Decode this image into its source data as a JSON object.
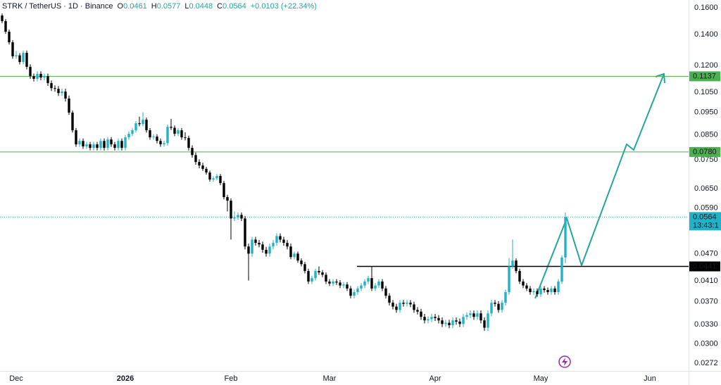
{
  "chart_data": {
    "type": "candlestick",
    "title": "STRK / TetherUS · 1D · Binance",
    "ohlc_letters": [
      "O",
      "H",
      "L",
      "C"
    ],
    "ohlc_values": [
      0.0461,
      0.0577,
      0.0448,
      0.0564
    ],
    "change": "+0.0103 (+22.34%)",
    "countdown": "13:43:1",
    "up_color": "#22b2c6",
    "down_color": "#000000",
    "log_scale": true,
    "grid": false,
    "ylim": [
      0.0262,
      0.1663
    ],
    "yticks": [
      {
        "value": 0.16,
        "label": "0.1600"
      },
      {
        "value": 0.14,
        "label": "0.1400"
      },
      {
        "value": 0.12,
        "label": "0.1200"
      },
      {
        "value": 0.105,
        "label": "0.1050"
      },
      {
        "value": 0.095,
        "label": "0.0950"
      },
      {
        "value": 0.085,
        "label": "0.0850"
      },
      {
        "value": 0.075,
        "label": "0.0750"
      },
      {
        "value": 0.065,
        "label": "0.0650"
      },
      {
        "value": 0.059,
        "label": "0.0590"
      },
      {
        "value": 0.047,
        "label": "0.0470"
      },
      {
        "value": 0.041,
        "label": "0.0410"
      },
      {
        "value": 0.037,
        "label": "0.0370"
      },
      {
        "value": 0.033,
        "label": "0.0330"
      },
      {
        "value": 0.03,
        "label": "0.0300"
      },
      0.0272
    ],
    "levels": [
      {
        "price": 0.1137,
        "color": "#4caf50",
        "full": true
      },
      {
        "price": 0.078,
        "label": "0.0780",
        "color": "#4caf50",
        "full": true
      },
      {
        "price": 0.0441,
        "color": "#000000",
        "full": false
      }
    ],
    "categories": [
      null,
      null,
      null,
      null,
      "Dec",
      null,
      null,
      null,
      null,
      null,
      null,
      null,
      null,
      null,
      null,
      null,
      null,
      null,
      null,
      null,
      null,
      null,
      null,
      null,
      null,
      null,
      null,
      null,
      null,
      null,
      null,
      null,
      null,
      null,
      null,
      "2026",
      null,
      null,
      null,
      null,
      null,
      null,
      null,
      null,
      null,
      null,
      null,
      null,
      null,
      null,
      null,
      null,
      null,
      null,
      null,
      null,
      null,
      null,
      null,
      null,
      null,
      null,
      null,
      null,
      null,
      "Feb",
      null,
      null,
      null,
      null,
      null,
      null,
      null,
      null,
      null,
      null,
      null,
      null,
      null,
      null,
      null,
      null,
      null,
      null,
      null,
      null,
      null,
      null,
      null,
      null,
      null,
      null,
      null,
      "Mar",
      null,
      null,
      null,
      null,
      null,
      null,
      null,
      null,
      null,
      null,
      null,
      null,
      null,
      null,
      null,
      null,
      null,
      null,
      null,
      null,
      null,
      null,
      null,
      null,
      null,
      null,
      null,
      null,
      null,
      "Apr",
      null,
      null,
      null,
      null,
      null,
      null,
      null,
      null,
      null,
      null,
      null,
      null,
      null,
      null,
      null,
      null,
      null,
      null,
      null,
      null,
      null,
      null,
      null,
      null,
      null,
      null,
      null,
      null,
      null,
      "May",
      null,
      null,
      null,
      null,
      null,
      null,
      null,
      null,
      null,
      null,
      null,
      null,
      null,
      null,
      null,
      null,
      null,
      null,
      null,
      null,
      null,
      null,
      null,
      null,
      null,
      null,
      null,
      null,
      null,
      null,
      "Jun",
      null,
      null,
      null,
      null,
      null,
      null,
      null,
      null,
      null,
      null,
      null
    ],
    "open": [
      0.154,
      0.1497,
      0.142,
      0.1347,
      0.1256,
      0.1262,
      0.1221,
      0.1278,
      0.1192,
      0.1138,
      0.1123,
      0.1151,
      0.113,
      0.1138,
      0.1099,
      0.1072,
      0.1068,
      0.1046,
      0.1054,
      0.1018,
      0.0949,
      0.0869,
      0.081,
      0.0824,
      0.0802,
      0.081,
      0.0796,
      0.081,
      0.0796,
      0.0824,
      0.0796,
      0.083,
      0.081,
      0.0796,
      0.0824,
      0.0796,
      0.0839,
      0.0854,
      0.0869,
      0.09,
      0.0896,
      0.0916,
      0.0869,
      0.0839,
      0.0842,
      0.0824,
      0.081,
      0.0815,
      0.0884,
      0.088,
      0.0854,
      0.0869,
      0.0839,
      0.0836,
      0.0796,
      0.0768,
      0.0742,
      0.0729,
      0.0717,
      0.0704,
      0.068,
      0.0684,
      0.0692,
      0.0668,
      0.0623,
      0.0612,
      0.056,
      0.0563,
      0.057,
      0.056,
      0.0487,
      0.047,
      0.0504,
      0.0496,
      0.0492,
      0.0479,
      0.047,
      0.0487,
      0.0496,
      0.0513,
      0.0504,
      0.0496,
      0.0487,
      0.0462,
      0.047,
      0.0454,
      0.0446,
      0.0431,
      0.0409,
      0.0416,
      0.0431,
      0.0428,
      0.0423,
      0.0409,
      0.0405,
      0.0409,
      0.0407,
      0.0401,
      0.0403,
      0.0395,
      0.0381,
      0.0388,
      0.0395,
      0.0401,
      0.0409,
      0.0416,
      0.0395,
      0.0401,
      0.0409,
      0.0395,
      0.0381,
      0.0368,
      0.0361,
      0.0355,
      0.0368,
      0.0366,
      0.0368,
      0.0365,
      0.0355,
      0.0352,
      0.0343,
      0.0337,
      0.0339,
      0.0343,
      0.0341,
      0.0337,
      0.0331,
      0.0333,
      0.0329,
      0.0337,
      0.0335,
      0.0331,
      0.0343,
      0.0346,
      0.0349,
      0.0343,
      0.0349,
      0.0337,
      0.0325,
      0.0349,
      0.0368,
      0.0366,
      0.0355,
      0.0368,
      0.0388,
      0.0441,
      0.0454,
      0.0431,
      0.0409,
      0.0401,
      0.0395,
      0.0388,
      0.039,
      0.0384,
      0.0395,
      0.0392,
      0.0388,
      0.0395,
      0.0388,
      0.0409,
      0.0461,
      null,
      null,
      null,
      null,
      null,
      null,
      null,
      null,
      null,
      null,
      null,
      null,
      null,
      null,
      null,
      null,
      null,
      null,
      null,
      null,
      null,
      null,
      null,
      null,
      null,
      null,
      null,
      null,
      null,
      null,
      null,
      null,
      null,
      null,
      null
    ],
    "high": [
      0.1555,
      0.1512,
      0.1435,
      0.1362,
      0.129,
      0.1277,
      0.1293,
      0.1293,
      0.1207,
      0.1153,
      0.1166,
      0.1166,
      0.1153,
      0.1153,
      0.1114,
      0.1087,
      0.1083,
      0.1069,
      0.1069,
      0.1033,
      0.0959,
      0.0879,
      0.0834,
      0.0834,
      0.082,
      0.082,
      0.082,
      0.082,
      0.0834,
      0.0834,
      0.084,
      0.084,
      0.082,
      0.0834,
      0.0834,
      0.0849,
      0.0864,
      0.0879,
      0.091,
      0.093,
      0.095,
      0.0926,
      0.0879,
      0.0852,
      0.0852,
      0.0834,
      0.0825,
      0.0894,
      0.092,
      0.089,
      0.0879,
      0.0879,
      0.086,
      0.0846,
      0.0806,
      0.0778,
      0.0752,
      0.0739,
      0.0724,
      0.0711,
      0.0691,
      0.0699,
      0.0699,
      0.0675,
      0.063,
      0.0619,
      0.058,
      0.0577,
      0.0577,
      0.0567,
      0.0494,
      0.0511,
      0.0511,
      0.0503,
      0.0499,
      0.0486,
      0.0494,
      0.0503,
      0.052,
      0.052,
      0.0511,
      0.0503,
      0.0494,
      0.0475,
      0.0475,
      0.0459,
      0.0451,
      0.0436,
      0.0421,
      0.0436,
      0.0441,
      0.0433,
      0.0428,
      0.0414,
      0.0414,
      0.0414,
      0.0412,
      0.0408,
      0.0408,
      0.04,
      0.0393,
      0.04,
      0.0406,
      0.0414,
      0.0421,
      0.0441,
      0.0406,
      0.0414,
      0.0414,
      0.04,
      0.0386,
      0.0373,
      0.0366,
      0.0373,
      0.0373,
      0.0373,
      0.0373,
      0.037,
      0.036,
      0.0357,
      0.0348,
      0.0344,
      0.0348,
      0.0348,
      0.0346,
      0.0342,
      0.0338,
      0.0338,
      0.0342,
      0.0342,
      0.034,
      0.0348,
      0.0351,
      0.0354,
      0.0354,
      0.0354,
      0.0354,
      0.0342,
      0.0354,
      0.0373,
      0.0373,
      0.0371,
      0.0373,
      0.0393,
      0.046,
      0.0504,
      0.0459,
      0.0436,
      0.0414,
      0.0406,
      0.04,
      0.0395,
      0.0395,
      0.04,
      0.04,
      0.0397,
      0.04,
      0.04,
      0.0414,
      0.0466,
      0.0577,
      null,
      null,
      null,
      null,
      null,
      null,
      null,
      null,
      null,
      null,
      null,
      null,
      null,
      null,
      null,
      null,
      null,
      null,
      null,
      null,
      null,
      null,
      null,
      null,
      null,
      null,
      null,
      null,
      null,
      null,
      null,
      null,
      null,
      null,
      null
    ],
    "low": [
      0.1482,
      0.1405,
      0.1332,
      0.1241,
      0.1241,
      0.1206,
      0.1206,
      0.1177,
      0.1123,
      0.1108,
      0.1108,
      0.1115,
      0.1115,
      0.1084,
      0.1057,
      0.1053,
      0.1031,
      0.1031,
      0.1003,
      0.0939,
      0.0859,
      0.08,
      0.08,
      0.0792,
      0.0792,
      0.0786,
      0.0786,
      0.0786,
      0.0786,
      0.0786,
      0.0786,
      0.08,
      0.0786,
      0.0786,
      0.0786,
      0.0786,
      0.0829,
      0.0844,
      0.0859,
      0.0886,
      0.0886,
      0.0859,
      0.0829,
      0.0829,
      0.0814,
      0.08,
      0.08,
      0.0805,
      0.087,
      0.0844,
      0.0844,
      0.0829,
      0.0826,
      0.0786,
      0.0758,
      0.0732,
      0.0719,
      0.071,
      0.0697,
      0.0673,
      0.0673,
      0.0677,
      0.0661,
      0.0616,
      0.058,
      0.0504,
      0.0553,
      0.0556,
      0.0553,
      0.048,
      0.0411,
      0.0463,
      0.0489,
      0.0485,
      0.0472,
      0.0463,
      0.0463,
      0.048,
      0.0489,
      0.0497,
      0.0489,
      0.048,
      0.0457,
      0.0457,
      0.0449,
      0.0441,
      0.0426,
      0.0404,
      0.0404,
      0.0411,
      0.0423,
      0.0418,
      0.0404,
      0.04,
      0.04,
      0.0402,
      0.0396,
      0.0396,
      0.039,
      0.0376,
      0.0376,
      0.0383,
      0.039,
      0.0396,
      0.0404,
      0.039,
      0.039,
      0.0396,
      0.039,
      0.0376,
      0.0363,
      0.0356,
      0.035,
      0.035,
      0.0361,
      0.0361,
      0.036,
      0.035,
      0.0347,
      0.0338,
      0.0332,
      0.0332,
      0.0334,
      0.0336,
      0.0332,
      0.0326,
      0.0326,
      0.0324,
      0.0324,
      0.033,
      0.0326,
      0.0326,
      0.0338,
      0.0341,
      0.0338,
      0.0338,
      0.0332,
      0.032,
      0.032,
      0.0344,
      0.0361,
      0.035,
      0.035,
      0.0363,
      0.0383,
      0.0436,
      0.0426,
      0.0404,
      0.0396,
      0.039,
      0.0383,
      0.0383,
      0.0379,
      0.0379,
      0.0387,
      0.0383,
      0.0383,
      0.0383,
      0.0383,
      0.0404,
      0.0448,
      null,
      null,
      null,
      null,
      null,
      null,
      null,
      null,
      null,
      null,
      null,
      null,
      null,
      null,
      null,
      null,
      null,
      null,
      null,
      null,
      null,
      null,
      null,
      null,
      null,
      null,
      null,
      null,
      null,
      null,
      null,
      null,
      null,
      null,
      null
    ],
    "close": [
      0.1497,
      0.142,
      0.1347,
      0.1256,
      0.1262,
      0.1221,
      0.1278,
      0.1192,
      0.1138,
      0.1123,
      0.1151,
      0.113,
      0.1138,
      0.1099,
      0.1072,
      0.1068,
      0.1046,
      0.1054,
      0.1018,
      0.0949,
      0.0869,
      0.081,
      0.0824,
      0.0802,
      0.081,
      0.0796,
      0.081,
      0.0796,
      0.0824,
      0.0796,
      0.083,
      0.081,
      0.0796,
      0.0824,
      0.0796,
      0.0839,
      0.0854,
      0.0869,
      0.09,
      0.0896,
      0.0916,
      0.0869,
      0.0839,
      0.0842,
      0.0824,
      0.081,
      0.0815,
      0.0884,
      0.088,
      0.0854,
      0.0869,
      0.0839,
      0.0836,
      0.0796,
      0.0768,
      0.0742,
      0.0729,
      0.0717,
      0.0704,
      0.068,
      0.0684,
      0.0692,
      0.0668,
      0.0623,
      0.0612,
      0.056,
      0.0563,
      0.057,
      0.056,
      0.0487,
      0.047,
      0.0504,
      0.0496,
      0.0492,
      0.0479,
      0.047,
      0.0487,
      0.0496,
      0.0513,
      0.0504,
      0.0496,
      0.0487,
      0.0462,
      0.047,
      0.0454,
      0.0446,
      0.0431,
      0.0409,
      0.0416,
      0.0431,
      0.0428,
      0.0423,
      0.0409,
      0.0405,
      0.0409,
      0.0407,
      0.0401,
      0.0403,
      0.0395,
      0.0381,
      0.0388,
      0.0395,
      0.0401,
      0.0409,
      0.0416,
      0.0395,
      0.0401,
      0.0409,
      0.0395,
      0.0381,
      0.0368,
      0.0361,
      0.0355,
      0.0368,
      0.0366,
      0.0368,
      0.0365,
      0.0355,
      0.0352,
      0.0343,
      0.0337,
      0.0339,
      0.0343,
      0.0341,
      0.0337,
      0.0331,
      0.0333,
      0.0329,
      0.0337,
      0.0335,
      0.0331,
      0.0343,
      0.0346,
      0.0349,
      0.0343,
      0.0349,
      0.0337,
      0.0325,
      0.0349,
      0.0368,
      0.0366,
      0.0355,
      0.0368,
      0.0388,
      0.0441,
      0.0454,
      0.0431,
      0.0409,
      0.0401,
      0.0395,
      0.0388,
      0.039,
      0.0384,
      0.0395,
      0.0392,
      0.0388,
      0.0395,
      0.0388,
      0.0409,
      0.0461,
      0.0564,
      null,
      null,
      null,
      null,
      null,
      null,
      null,
      null,
      null,
      null,
      null,
      null,
      null,
      null,
      null,
      null,
      null,
      null,
      null,
      null,
      null,
      null,
      null,
      null,
      null,
      null,
      null,
      null,
      null,
      null,
      null,
      null,
      null,
      null,
      null
    ]
  }
}
